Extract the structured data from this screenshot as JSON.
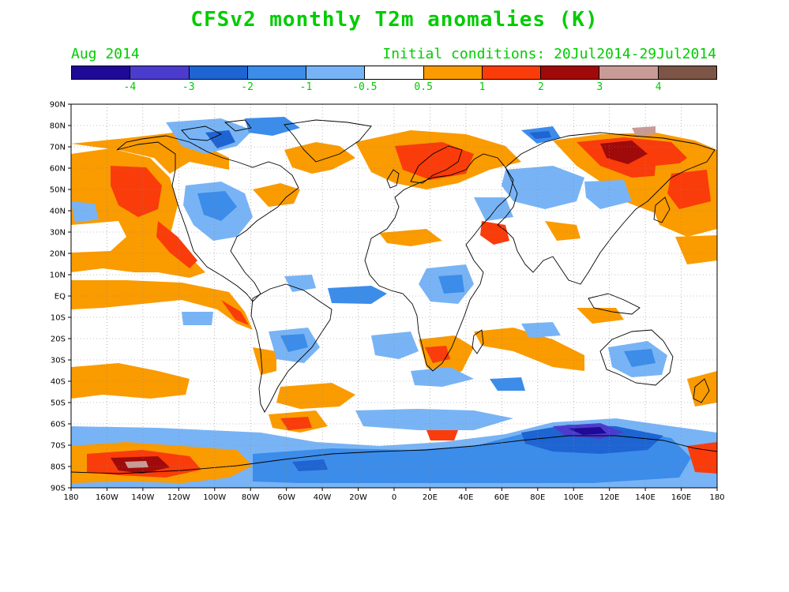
{
  "header": {
    "title": "CFSv2 monthly T2m anomalies (K)",
    "month": "Aug 2014",
    "initial_conditions": "Initial conditions: 20Jul2014-29Jul2014",
    "text_color": "#00cc00"
  },
  "colorbar": {
    "colors": [
      "#1e0a96",
      "#4b3ccd",
      "#1e64d2",
      "#3c8cea",
      "#78b4f5",
      "#ffffff",
      "#fa9b00",
      "#fa3c0a",
      "#a00a0a",
      "#c89b96",
      "#7d5546"
    ],
    "labels": [
      "-4",
      "-3",
      "-2",
      "-1",
      "-0.5",
      "0.5",
      "1",
      "2",
      "3",
      "4"
    ]
  },
  "map": {
    "lat_labels": [
      "90N",
      "80N",
      "70N",
      "60N",
      "50N",
      "40N",
      "30N",
      "20N",
      "10N",
      "EQ",
      "10S",
      "20S",
      "30S",
      "40S",
      "50S",
      "60S",
      "70S",
      "80S",
      "90S"
    ],
    "lon_labels": [
      "180",
      "160W",
      "140W",
      "120W",
      "100W",
      "80W",
      "60W",
      "40W",
      "20W",
      "0",
      "20E",
      "40E",
      "60E",
      "80E",
      "100E",
      "120E",
      "140E",
      "160E",
      "180"
    ],
    "grid": true
  }
}
